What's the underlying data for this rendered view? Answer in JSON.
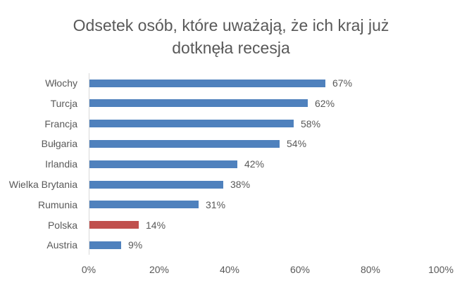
{
  "chart_data": {
    "type": "bar",
    "orientation": "horizontal",
    "title": "Odsetek osób, które uważają, że ich kraj już dotknęła recesja",
    "title_lines": [
      "Odsetek osób, które uważają, że ich kraj już",
      "dotknęła recesja"
    ],
    "categories": [
      "Włochy",
      "Turcja",
      "Francja",
      "Bułgaria",
      "Irlandia",
      "Wielka Brytania",
      "Rumunia",
      "Polska",
      "Austria"
    ],
    "values": [
      67,
      62,
      58,
      54,
      42,
      38,
      31,
      14,
      9
    ],
    "value_labels": [
      "67%",
      "62%",
      "58%",
      "54%",
      "42%",
      "38%",
      "31%",
      "14%",
      "9%"
    ],
    "bar_colors": [
      "#4f81bd",
      "#4f81bd",
      "#4f81bd",
      "#4f81bd",
      "#4f81bd",
      "#4f81bd",
      "#4f81bd",
      "#c0504d",
      "#4f81bd"
    ],
    "highlight": "Polska",
    "xlabel": "",
    "ylabel": "",
    "xlim": [
      0,
      100
    ],
    "x_ticks": [
      "0%",
      "20%",
      "40%",
      "60%",
      "80%",
      "100%"
    ],
    "grid": false,
    "legend": "none"
  }
}
